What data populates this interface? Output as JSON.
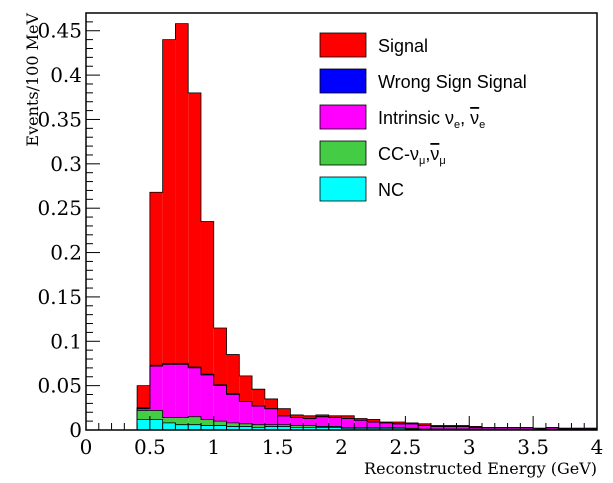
{
  "chart_data": {
    "type": "area",
    "stacked": true,
    "histogram": true,
    "xlabel": "Reconstructed Energy (GeV)",
    "ylabel": "Events/100 MeV",
    "xlim": [
      0,
      4
    ],
    "ylim": [
      0,
      0.47
    ],
    "bin_width": 0.1,
    "x_bin_edges": [
      0.4,
      0.5,
      0.6,
      0.7,
      0.8,
      0.9,
      1.0,
      1.1,
      1.2,
      1.3,
      1.4,
      1.5,
      1.6,
      1.7,
      1.8,
      1.9,
      2.0,
      2.1,
      2.2,
      2.3,
      2.4,
      2.5,
      2.6,
      2.7,
      2.8,
      2.9,
      3.0,
      3.1,
      3.2,
      3.3,
      3.4,
      3.5,
      3.6,
      3.7,
      3.8,
      3.9,
      4.0
    ],
    "x_ticks": [
      {
        "value": 0,
        "label": "0"
      },
      {
        "value": 0.5,
        "label": "0.5"
      },
      {
        "value": 1,
        "label": "1"
      },
      {
        "value": 1.5,
        "label": "1.5"
      },
      {
        "value": 2,
        "label": "2"
      },
      {
        "value": 2.5,
        "label": "2.5"
      },
      {
        "value": 3,
        "label": "3"
      },
      {
        "value": 3.5,
        "label": "3.5"
      },
      {
        "value": 4,
        "label": "4"
      }
    ],
    "y_ticks": [
      {
        "value": 0,
        "label": "0"
      },
      {
        "value": 0.05,
        "label": "0.05"
      },
      {
        "value": 0.1,
        "label": "0.1"
      },
      {
        "value": 0.15,
        "label": "0.15"
      },
      {
        "value": 0.2,
        "label": "0.2"
      },
      {
        "value": 0.25,
        "label": "0.25"
      },
      {
        "value": 0.3,
        "label": "0.3"
      },
      {
        "value": 0.35,
        "label": "0.35"
      },
      {
        "value": 0.4,
        "label": "0.4"
      },
      {
        "value": 0.45,
        "label": "0.45"
      }
    ],
    "series": [
      {
        "name": "NC",
        "color": "#00ffff",
        "values": [
          0.012,
          0.012,
          0.008,
          0.006,
          0.006,
          0.005,
          0.005,
          0.004,
          0.004,
          0.003,
          0.004,
          0.004,
          0.003,
          0.003,
          0.003,
          0.003,
          0.002,
          0.002,
          0.002,
          0.002,
          0.002,
          0.001,
          0.001,
          0.001,
          0.001,
          0.001,
          0.001,
          0.001,
          0.001,
          0.001,
          0.001,
          0.001,
          0.001,
          0.001,
          0.001,
          0.001
        ]
      },
      {
        "name": "CC-νμ,ν̄μ",
        "color": "#44cc44",
        "values": [
          0.01,
          0.01,
          0.006,
          0.008,
          0.009,
          0.007,
          0.005,
          0.004,
          0.003,
          0.003,
          0.002,
          0.002,
          0.002,
          0.002,
          0.001,
          0.001,
          0.001,
          0.001,
          0.001,
          0.001,
          0.001,
          0.001,
          0.0,
          0.0,
          0.0,
          0.0,
          0.0,
          0.0,
          0.0,
          0.0,
          0.0,
          0.0,
          0.0,
          0.0,
          0.0,
          0.0
        ]
      },
      {
        "name": "Intrinsic νe, ν̄e",
        "color": "#ff00ff",
        "values": [
          0.002,
          0.05,
          0.06,
          0.06,
          0.055,
          0.05,
          0.04,
          0.032,
          0.025,
          0.021,
          0.018,
          0.01,
          0.009,
          0.008,
          0.011,
          0.01,
          0.01,
          0.008,
          0.006,
          0.005,
          0.004,
          0.005,
          0.004,
          0.003,
          0.003,
          0.003,
          0.002,
          0.002,
          0.002,
          0.002,
          0.002,
          0.001,
          0.002,
          0.001,
          0.001,
          0.001
        ]
      },
      {
        "name": "Wrong Sign Signal",
        "color": "#0000ff",
        "values": [
          0.001,
          0.001,
          0.001,
          0.001,
          0.001,
          0.001,
          0.001,
          0.001,
          0.0,
          0.0,
          0.0,
          0.0,
          0.0,
          0.0,
          0.0,
          0.0,
          0.0,
          0.0,
          0.0,
          0.0,
          0.0,
          0.0,
          0.0,
          0.0,
          0.0,
          0.0,
          0.0,
          0.0,
          0.0,
          0.0,
          0.0,
          0.0,
          0.0,
          0.0,
          0.0,
          0.0
        ]
      },
      {
        "name": "Signal",
        "color": "#ff0000",
        "values": [
          0.025,
          0.195,
          0.365,
          0.383,
          0.309,
          0.172,
          0.064,
          0.044,
          0.029,
          0.019,
          0.011,
          0.008,
          0.003,
          0.003,
          0.002,
          0.002,
          0.003,
          0.002,
          0.003,
          0.001,
          0.002,
          0.001,
          0.002,
          0.001,
          0.001,
          0.001,
          0.001,
          0.0,
          0.0,
          0.0,
          0.0,
          0.0,
          0.0,
          0.0,
          0.0,
          0.0
        ]
      }
    ],
    "legend_order": [
      "Signal",
      "Wrong Sign Signal",
      "Intrinsic νe, ν̄e",
      "CC-νμ,ν̄μ",
      "NC"
    ],
    "legend": {
      "placement": "top-right",
      "entries": [
        {
          "color": "#ff0000",
          "label": "Signal"
        },
        {
          "color": "#0000ff",
          "label": "Wrong Sign Signal"
        },
        {
          "color": "#ff00ff",
          "label_parts": [
            "Intrinsic ν",
            "e",
            ", ",
            "ν",
            "e"
          ]
        },
        {
          "color": "#44cc44",
          "label_parts": [
            "CC-ν",
            "μ",
            ",",
            "ν",
            "μ"
          ]
        },
        {
          "color": "#00ffff",
          "label": "NC"
        }
      ]
    },
    "grid": false
  }
}
